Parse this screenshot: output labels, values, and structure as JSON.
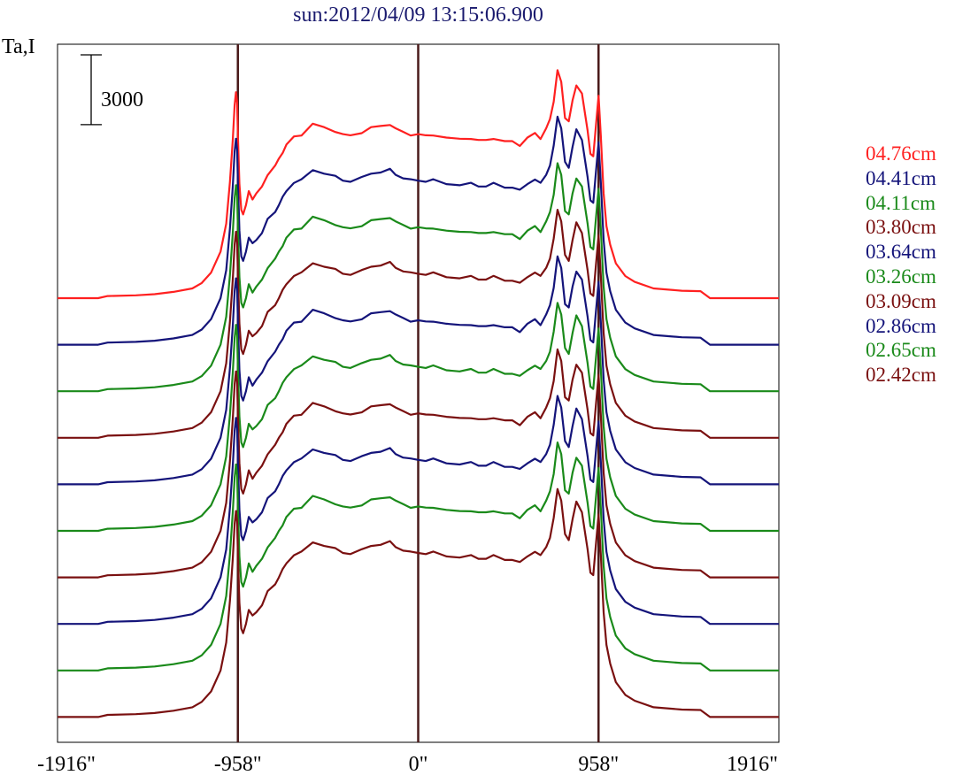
{
  "chart_data": {
    "type": "line",
    "title": "sun:2012/04/09 13:15:06.900",
    "ylabel": "Ta,I",
    "xlabel": "",
    "x_ticks": [
      "-1916\"",
      "-958\"",
      "0\"",
      "958\"",
      "1916\""
    ],
    "xlim": [
      -1916,
      1916
    ],
    "vertical_lines": [
      -958,
      0,
      958
    ],
    "scale_bar_label": "3000",
    "scale_bar_value": 3000,
    "grid": false,
    "legend_position": "right",
    "profile_x": [
      -1916,
      -1700,
      -1650,
      -1500,
      -1400,
      -1300,
      -1200,
      -1150,
      -1100,
      -1050,
      -1020,
      -1000,
      -985,
      -975,
      -968,
      -962,
      -958,
      -950,
      -940,
      -930,
      -915,
      -900,
      -880,
      -860,
      -830,
      -800,
      -760,
      -740,
      -720,
      -700,
      -660,
      -620,
      -560,
      -500,
      -440,
      -400,
      -360,
      -300,
      -250,
      -200,
      -150,
      -120,
      -80,
      -40,
      0,
      40,
      80,
      150,
      220,
      280,
      320,
      360,
      400,
      460,
      500,
      540,
      580,
      620,
      650,
      680,
      700,
      720,
      740,
      760,
      780,
      800,
      820,
      840,
      870,
      900,
      915,
      930,
      945,
      958,
      970,
      985,
      1000,
      1020,
      1050,
      1100,
      1150,
      1250,
      1400,
      1500,
      1550,
      1700,
      1800,
      1916
    ],
    "profile_y": [
      0,
      0,
      90,
      120,
      170,
      270,
      420,
      650,
      1100,
      2000,
      3200,
      5000,
      6800,
      8300,
      8850,
      8400,
      7000,
      4900,
      3800,
      3600,
      4000,
      4600,
      4300,
      4500,
      4800,
      5350,
      5700,
      6000,
      6300,
      6600,
      6950,
      7050,
      7500,
      7350,
      7200,
      7050,
      7000,
      7150,
      7350,
      7400,
      7500,
      7300,
      7150,
      7050,
      7050,
      7000,
      7050,
      6900,
      6850,
      6900,
      6800,
      6800,
      6900,
      6750,
      6750,
      6600,
      6900,
      7100,
      6900,
      7300,
      7700,
      8500,
      9800,
      9300,
      7800,
      7600,
      8500,
      9200,
      8800,
      7200,
      6200,
      6100,
      7500,
      8700,
      7000,
      4500,
      3100,
      2300,
      1500,
      950,
      700,
      420,
      320,
      300,
      0,
      0,
      0,
      0
    ],
    "series": [
      {
        "name": "04.76cm",
        "color": "#ff2020",
        "offset": 0
      },
      {
        "name": "04.41cm",
        "color": "#14147a",
        "offset": -2000
      },
      {
        "name": "04.11cm",
        "color": "#1a8a1a",
        "offset": -4000
      },
      {
        "name": "03.80cm",
        "color": "#7a1010",
        "offset": -6000
      },
      {
        "name": "03.64cm",
        "color": "#14147a",
        "offset": -8000
      },
      {
        "name": "03.26cm",
        "color": "#1a8a1a",
        "offset": -10000
      },
      {
        "name": "03.09cm",
        "color": "#7a1010",
        "offset": -12000
      },
      {
        "name": "02.86cm",
        "color": "#14147a",
        "offset": -14000
      },
      {
        "name": "02.65cm",
        "color": "#1a8a1a",
        "offset": -16000
      },
      {
        "name": "02.42cm",
        "color": "#7a1010",
        "offset": -18000
      }
    ]
  }
}
